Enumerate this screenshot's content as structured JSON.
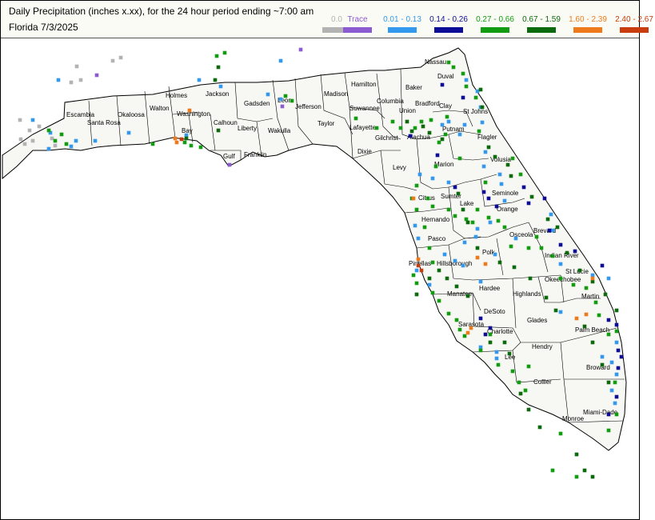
{
  "header": {
    "title": "Daily Precipitation (inches  x.xx),  for the 24 hour period ending ~7:00 am",
    "subtitle": "Florida 7/3/2025"
  },
  "legend": [
    {
      "label": "0.0",
      "color": "#b3b3b3"
    },
    {
      "label": "Trace",
      "color": "#8d5bd1"
    },
    {
      "label": "0.01 - 0.13",
      "color": "#3399ee"
    },
    {
      "label": "0.14 - 0.26",
      "color": "#0c0c96"
    },
    {
      "label": "0.27 - 0.66",
      "color": "#129c12"
    },
    {
      "label": "0.67 - 1.59",
      "color": "#0b6a0b"
    },
    {
      "label": "1.60 - 2.39",
      "color": "#ee7a1b"
    },
    {
      "label": "2.40 - 2.67",
      "color": "#c83c0e"
    }
  ],
  "counties": [
    "Escambia",
    "Santa Rosa",
    "Okaloosa",
    "Walton",
    "Holmes",
    "Washington",
    "Bay",
    "Jackson",
    "Calhoun",
    "Gulf",
    "Gadsden",
    "Liberty",
    "Franklin",
    "Leon",
    "Wakulla",
    "Jefferson",
    "Madison",
    "Taylor",
    "Hamilton",
    "Suwannee",
    "Lafayette",
    "Dixie",
    "Columbia",
    "Union",
    "Baker",
    "Nassau",
    "Duval",
    "Bradford",
    "Clay",
    "St Johns",
    "Putnam",
    "Flagler",
    "Alachua",
    "Gilchrist",
    "Levy",
    "Marion",
    "Volusia",
    "Citrus",
    "Sumter",
    "Lake",
    "Seminole",
    "Orange",
    "Brevard",
    "Hernando",
    "Pasco",
    "Osceola",
    "Pinellas",
    "Hillsborough",
    "Polk",
    "Indian River",
    "Manatee",
    "Hardee",
    "Highlands",
    "Okeechobee",
    "St Lucie",
    "Sarasota",
    "DeSoto",
    "Martin",
    "Charlotte",
    "Glades",
    "Palm Beach",
    "Lee",
    "Hendry",
    "Broward",
    "Collier",
    "Miami-Dade",
    "Monroe"
  ]
}
